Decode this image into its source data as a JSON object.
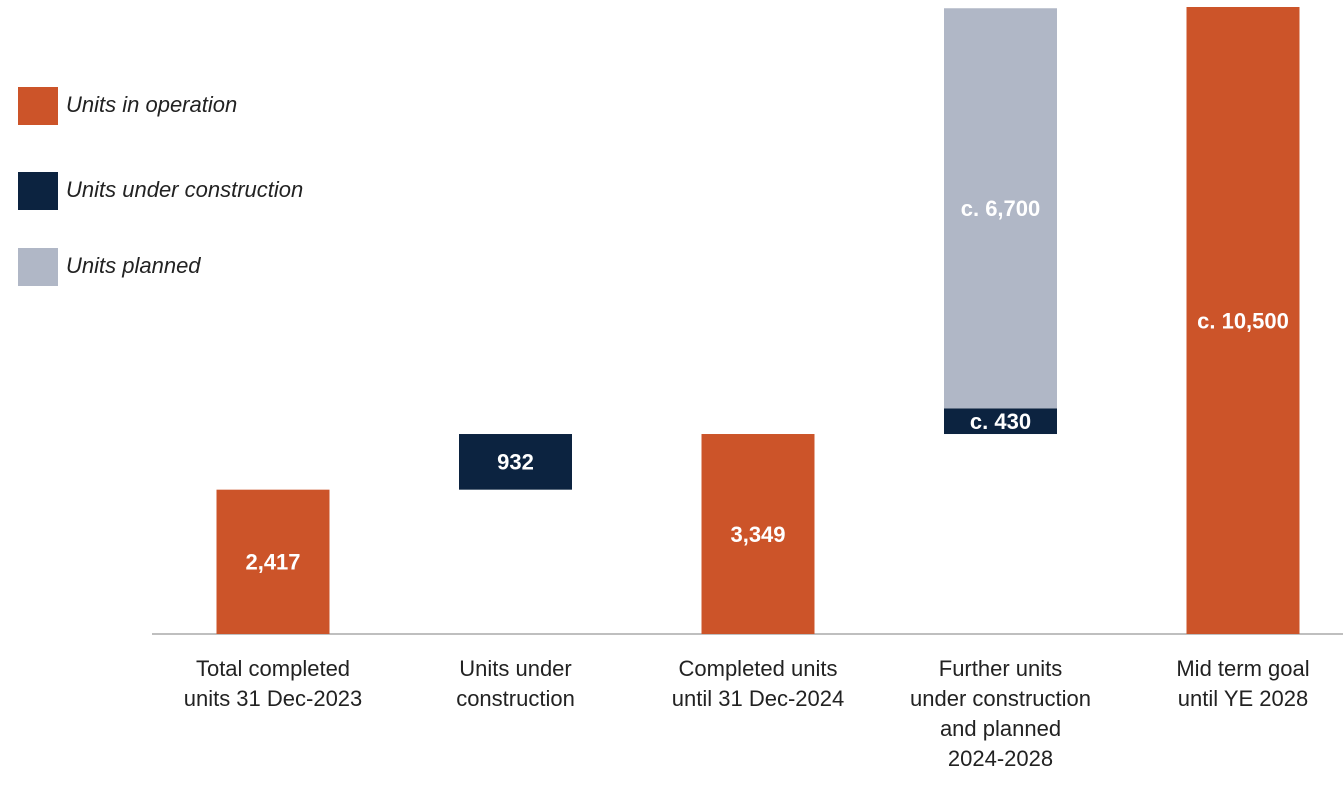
{
  "chart_data": {
    "type": "waterfall",
    "categories": [
      "Total completed\nunits 31 Dec-2023",
      "Units under\nconstruction",
      "Completed units\nuntil 31 Dec-2024",
      "Further units\nunder construction\nand planned\n2024-2028",
      "Mid term goal\nuntil YE 2028"
    ],
    "measures": [
      "total",
      "relative",
      "total",
      "relative",
      "total"
    ],
    "series": [
      {
        "name": "Units in operation",
        "color": "#cc5429",
        "values": [
          2417,
          null,
          3349,
          null,
          10500
        ],
        "value_labels": [
          "2,417",
          null,
          "3,349",
          null,
          "c. 10,500"
        ]
      },
      {
        "name": "Units under construction",
        "color": "#0c2340",
        "values": [
          null,
          932,
          null,
          430,
          null
        ],
        "value_labels": [
          null,
          "932",
          null,
          "c. 430",
          null
        ]
      },
      {
        "name": "Units planned",
        "color": "#b0b7c6",
        "values": [
          null,
          null,
          null,
          6700,
          null
        ],
        "value_labels": [
          null,
          null,
          null,
          "c. 6,700",
          null
        ]
      }
    ],
    "legend": "top-left"
  }
}
